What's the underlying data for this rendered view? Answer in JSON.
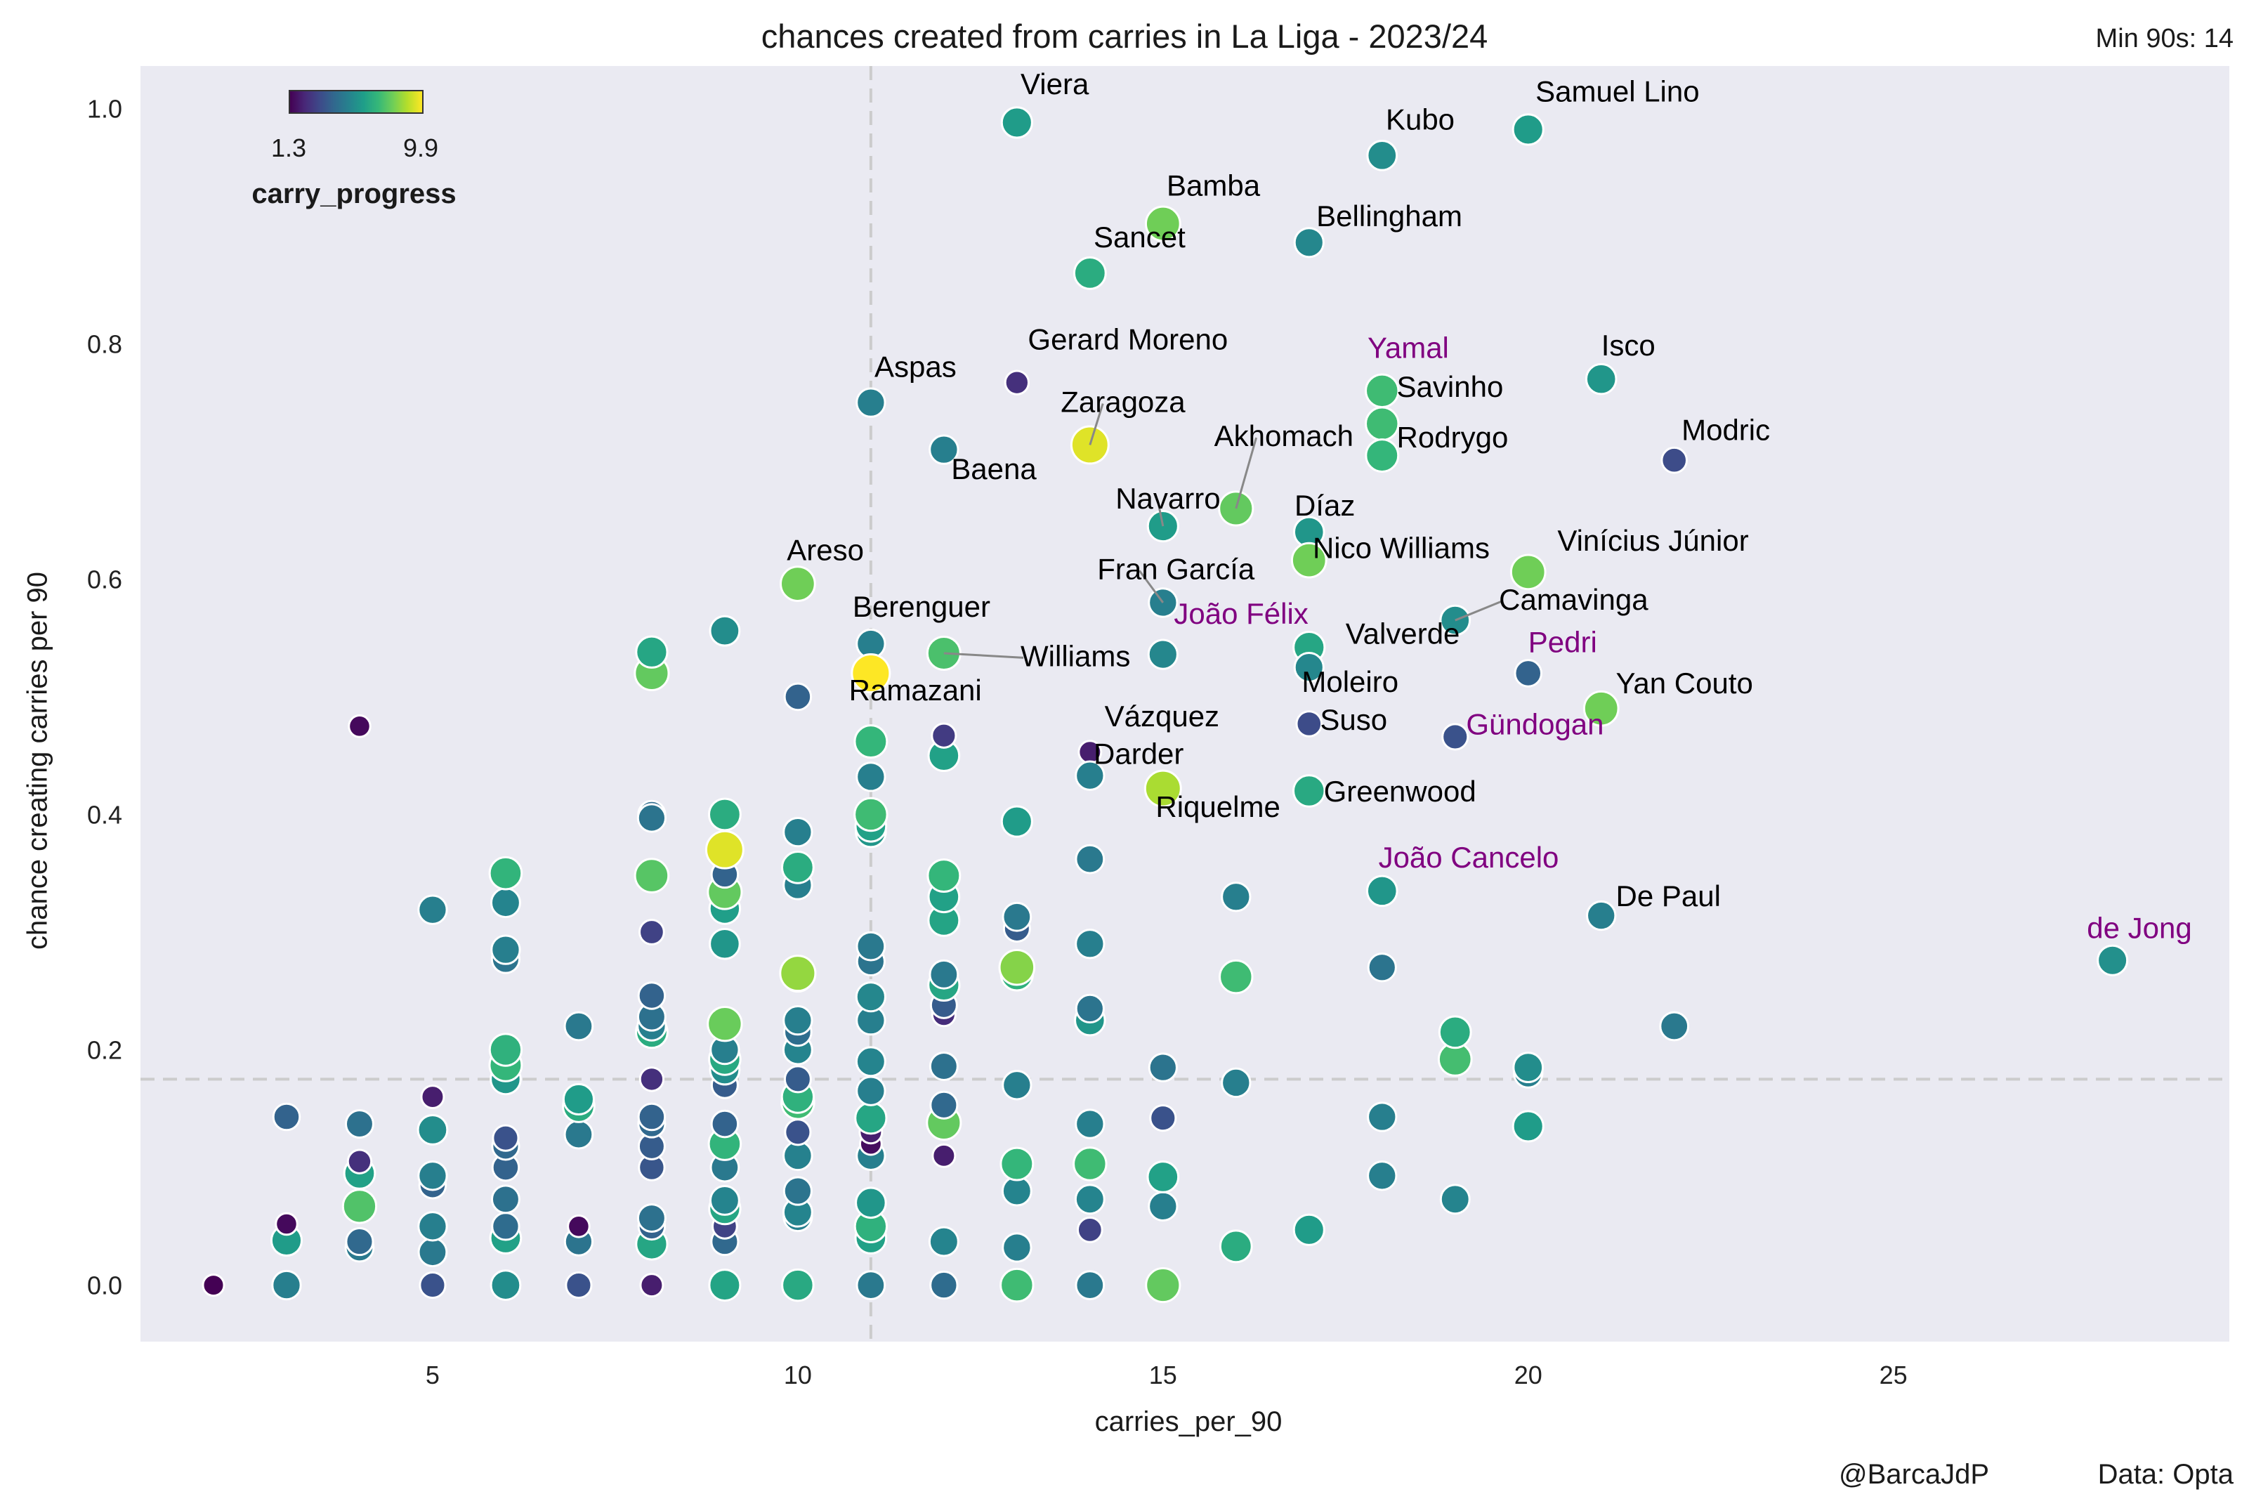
{
  "title": "chances created from carries in La Liga - 2023/24",
  "subtitle": "Min 90s: 14",
  "credit_left": "@BarcaJdP",
  "credit_right": "Data: Opta",
  "colors": {
    "plot_bg": "#eaeaf2",
    "highlight": "#800080",
    "label": "#000000",
    "mean_line": "#cccccc"
  },
  "chart_data": {
    "type": "scatter",
    "xlabel": "carries_per_90",
    "ylabel": "chance creating carries per 90",
    "xlim": [
      1,
      29.6
    ],
    "ylim": [
      -0.048,
      1.036
    ],
    "x_ticks": [
      5,
      10,
      15,
      20,
      25
    ],
    "y_ticks": [
      0.0,
      0.2,
      0.4,
      0.6,
      0.8,
      1.0
    ],
    "y_tick_labels": [
      "0.0",
      "0.2",
      "0.4",
      "0.6",
      "0.8",
      "1.0"
    ],
    "grid": false,
    "mean_lines": {
      "x": 11,
      "y": 0.175
    },
    "colorbar": {
      "title": "carry_progress",
      "min_label": "1.3",
      "max_label": "9.9",
      "min": 1.3,
      "max": 9.9,
      "colormap": "viridis",
      "position": "top-left"
    },
    "labeled_points": [
      {
        "name": "Viera",
        "x": 13,
        "y": 0.988,
        "c": 6.0,
        "lx": 13.05,
        "ly": 1.012,
        "hl": false
      },
      {
        "name": "Samuel Lino",
        "x": 20,
        "y": 0.982,
        "c": 6.0,
        "lx": 20.1,
        "ly": 1.006,
        "hl": false
      },
      {
        "name": "Kubo",
        "x": 18,
        "y": 0.96,
        "c": 5.5,
        "lx": 18.05,
        "ly": 0.982,
        "hl": false
      },
      {
        "name": "Bamba",
        "x": 15,
        "y": 0.902,
        "c": 8.0,
        "lx": 15.05,
        "ly": 0.926,
        "hl": false
      },
      {
        "name": "Bellingham",
        "x": 17,
        "y": 0.886,
        "c": 5.3,
        "lx": 17.1,
        "ly": 0.9,
        "hl": false
      },
      {
        "name": "Sancet",
        "x": 14,
        "y": 0.86,
        "c": 6.6,
        "lx": 14.05,
        "ly": 0.882,
        "hl": false
      },
      {
        "name": "Gerard Moreno",
        "x": 13,
        "y": 0.767,
        "c": 2.5,
        "lx": 13.15,
        "ly": 0.795,
        "hl": false
      },
      {
        "name": "Yamal",
        "x": 18,
        "y": 0.76,
        "c": 7.2,
        "lx": 17.8,
        "ly": 0.788,
        "hl": true
      },
      {
        "name": "Isco",
        "x": 21,
        "y": 0.77,
        "c": 5.8,
        "lx": 21.0,
        "ly": 0.79,
        "hl": false
      },
      {
        "name": "Aspas",
        "x": 11,
        "y": 0.75,
        "c": 5.0,
        "lx": 11.05,
        "ly": 0.772,
        "hl": false
      },
      {
        "name": "Savinho",
        "x": 18,
        "y": 0.732,
        "c": 7.2,
        "lx": 18.2,
        "ly": 0.755,
        "hl": false
      },
      {
        "name": "Zaragoza",
        "x": 14,
        "y": 0.714,
        "c": 9.5,
        "lx": 13.6,
        "ly": 0.742,
        "hl": false
      },
      {
        "name": "Baena",
        "x": 12,
        "y": 0.71,
        "c": 5.0,
        "lx": 12.1,
        "ly": 0.685,
        "hl": false
      },
      {
        "name": "Modric",
        "x": 22,
        "y": 0.701,
        "c": 3.3,
        "lx": 22.1,
        "ly": 0.718,
        "hl": false
      },
      {
        "name": "Rodrygo",
        "x": 18,
        "y": 0.705,
        "c": 7.0,
        "lx": 18.2,
        "ly": 0.712,
        "hl": false
      },
      {
        "name": "Akhomach",
        "x": 16,
        "y": 0.66,
        "c": 7.8,
        "lx": 15.7,
        "ly": 0.713,
        "hl": false
      },
      {
        "name": "Navarro",
        "x": 15,
        "y": 0.645,
        "c": 6.0,
        "lx": 14.35,
        "ly": 0.66,
        "hl": false
      },
      {
        "name": "Díaz",
        "x": 17,
        "y": 0.64,
        "c": 5.8,
        "lx": 16.8,
        "ly": 0.654,
        "hl": false
      },
      {
        "name": "Nico Williams",
        "x": 17,
        "y": 0.616,
        "c": 8.0,
        "lx": 17.05,
        "ly": 0.618,
        "hl": false
      },
      {
        "name": "Vinícius Júnior",
        "x": 20,
        "y": 0.606,
        "c": 8.0,
        "lx": 20.4,
        "ly": 0.624,
        "hl": false
      },
      {
        "name": "Areso",
        "x": 10,
        "y": 0.596,
        "c": 8.0,
        "lx": 9.85,
        "ly": 0.616,
        "hl": false
      },
      {
        "name": "Fran García",
        "x": 15,
        "y": 0.58,
        "c": 5.0,
        "lx": 14.1,
        "ly": 0.6,
        "hl": false
      },
      {
        "name": "Camavinga",
        "x": 19,
        "y": 0.565,
        "c": 5.5,
        "lx": 19.6,
        "ly": 0.574,
        "hl": false
      },
      {
        "name": "Berenguer",
        "x": 11,
        "y": 0.545,
        "c": 5.0,
        "lx": 10.75,
        "ly": 0.568,
        "hl": false
      },
      {
        "name": "João Félix",
        "x": 15,
        "y": 0.536,
        "c": 5.3,
        "lx": 15.15,
        "ly": 0.562,
        "hl": true
      },
      {
        "name": "Valverde",
        "x": 17,
        "y": 0.542,
        "c": 6.4,
        "lx": 17.5,
        "ly": 0.545,
        "hl": false
      },
      {
        "name": "Williams",
        "x": 12,
        "y": 0.537,
        "c": 7.4,
        "lx": 13.05,
        "ly": 0.526,
        "hl": false
      },
      {
        "name": "Ramazani",
        "x": 11,
        "y": 0.52,
        "c": 9.9,
        "lx": 10.7,
        "ly": 0.497,
        "hl": false
      },
      {
        "name": "Pedri",
        "x": 20,
        "y": 0.52,
        "c": 4.0,
        "lx": 20.0,
        "ly": 0.538,
        "hl": true
      },
      {
        "name": "Moleiro",
        "x": 17,
        "y": 0.525,
        "c": 5.3,
        "lx": 16.9,
        "ly": 0.504,
        "hl": false
      },
      {
        "name": "Yan Couto",
        "x": 21,
        "y": 0.49,
        "c": 8.0,
        "lx": 21.2,
        "ly": 0.503,
        "hl": false
      },
      {
        "name": "Vázquez",
        "x": 14,
        "y": 0.453,
        "c": 2.0,
        "lx": 14.2,
        "ly": 0.475,
        "hl": false
      },
      {
        "name": "Suso",
        "x": 17,
        "y": 0.477,
        "c": 3.3,
        "lx": 17.15,
        "ly": 0.472,
        "hl": false
      },
      {
        "name": "Gündogan",
        "x": 19,
        "y": 0.466,
        "c": 3.5,
        "lx": 19.15,
        "ly": 0.468,
        "hl": true
      },
      {
        "name": "Darder",
        "x": 14,
        "y": 0.433,
        "c": 5.0,
        "lx": 14.05,
        "ly": 0.443,
        "hl": false
      },
      {
        "name": "Riquelme",
        "x": 15,
        "y": 0.422,
        "c": 8.8,
        "lx": 14.9,
        "ly": 0.398,
        "hl": false
      },
      {
        "name": "Greenwood",
        "x": 17,
        "y": 0.42,
        "c": 6.5,
        "lx": 17.2,
        "ly": 0.411,
        "hl": false
      },
      {
        "name": "João Cancelo",
        "x": 18,
        "y": 0.335,
        "c": 5.8,
        "lx": 17.95,
        "ly": 0.355,
        "hl": true
      },
      {
        "name": "De Paul",
        "x": 21,
        "y": 0.314,
        "c": 5.0,
        "lx": 21.2,
        "ly": 0.322,
        "hl": false
      },
      {
        "name": "de Jong",
        "x": 28,
        "y": 0.276,
        "c": 5.6,
        "lx": 27.65,
        "ly": 0.295,
        "hl": true
      }
    ],
    "points": [
      [
        2,
        0,
        1.3
      ],
      [
        3,
        0,
        5.0
      ],
      [
        3,
        0.038,
        6.0
      ],
      [
        3,
        0.052,
        1.5
      ],
      [
        3,
        0.143,
        4.0
      ],
      [
        4,
        0.032,
        4.8
      ],
      [
        4,
        0.037,
        4.2
      ],
      [
        4,
        0.067,
        7.5
      ],
      [
        4,
        0.095,
        6.2
      ],
      [
        4,
        0.105,
        2.5
      ],
      [
        4,
        0.137,
        4.5
      ],
      [
        4,
        0.475,
        1.5
      ],
      [
        5,
        0,
        3.5
      ],
      [
        5,
        0.028,
        4.8
      ],
      [
        5,
        0.05,
        5.0
      ],
      [
        5,
        0.085,
        4.0
      ],
      [
        5,
        0.093,
        5.0
      ],
      [
        5,
        0.132,
        5.5
      ],
      [
        5,
        0.16,
        2.0
      ],
      [
        5,
        0.319,
        5.0
      ],
      [
        6,
        0,
        5.5
      ],
      [
        6,
        0.04,
        6.2
      ],
      [
        6,
        0.05,
        4.3
      ],
      [
        6,
        0.073,
        4.5
      ],
      [
        6,
        0.1,
        4.0
      ],
      [
        6,
        0.118,
        4.2
      ],
      [
        6,
        0.125,
        3.5
      ],
      [
        6,
        0.175,
        5.8
      ],
      [
        6,
        0.187,
        7.0
      ],
      [
        6,
        0.2,
        6.8
      ],
      [
        6,
        0.277,
        4.6
      ],
      [
        6,
        0.285,
        5.0
      ],
      [
        6,
        0.325,
        5.2
      ],
      [
        6,
        0.35,
        6.9
      ],
      [
        7,
        0,
        3.5
      ],
      [
        7,
        0.037,
        4.6
      ],
      [
        7,
        0.05,
        1.5
      ],
      [
        7,
        0.128,
        4.8
      ],
      [
        7,
        0.152,
        6.6
      ],
      [
        7,
        0.158,
        6.0
      ],
      [
        7,
        0.22,
        4.8
      ],
      [
        8,
        0,
        2.0
      ],
      [
        8,
        0.035,
        6.4
      ],
      [
        8,
        0.05,
        4.0
      ],
      [
        8,
        0.057,
        4.5
      ],
      [
        8,
        0.1,
        3.6
      ],
      [
        8,
        0.118,
        3.8
      ],
      [
        8,
        0.137,
        4.2
      ],
      [
        8,
        0.143,
        4.0
      ],
      [
        8,
        0.175,
        2.5
      ],
      [
        8,
        0.215,
        6.6
      ],
      [
        8,
        0.22,
        5.0
      ],
      [
        8,
        0.228,
        4.5
      ],
      [
        8,
        0.246,
        4.0
      ],
      [
        8,
        0.3,
        3.0
      ],
      [
        8,
        0.348,
        7.6
      ],
      [
        8,
        0.4,
        4.3
      ],
      [
        8,
        0.397,
        4.6
      ],
      [
        8,
        0.52,
        7.8
      ],
      [
        8,
        0.538,
        6.4
      ],
      [
        9,
        0,
        6.3
      ],
      [
        9,
        0.037,
        4.2
      ],
      [
        9,
        0.05,
        3.0
      ],
      [
        9,
        0.065,
        6.4
      ],
      [
        9,
        0.072,
        5.2
      ],
      [
        9,
        0.1,
        4.8
      ],
      [
        9,
        0.12,
        6.9
      ],
      [
        9,
        0.137,
        4.0
      ],
      [
        9,
        0.17,
        3.8
      ],
      [
        9,
        0.183,
        5.5
      ],
      [
        9,
        0.192,
        6.5
      ],
      [
        9,
        0.2,
        5.0
      ],
      [
        9,
        0.222,
        7.9
      ],
      [
        9,
        0.29,
        5.8
      ],
      [
        9,
        0.32,
        6.1
      ],
      [
        9,
        0.334,
        7.8
      ],
      [
        9,
        0.349,
        4.0
      ],
      [
        9,
        0.37,
        9.5
      ],
      [
        9,
        0.4,
        6.6
      ],
      [
        9,
        0.556,
        5.5
      ],
      [
        10,
        0,
        6.5
      ],
      [
        10,
        0.058,
        5.0
      ],
      [
        10,
        0.062,
        5.2
      ],
      [
        10,
        0.08,
        4.6
      ],
      [
        10,
        0.11,
        5.1
      ],
      [
        10,
        0.13,
        3.5
      ],
      [
        10,
        0.155,
        7.2
      ],
      [
        10,
        0.16,
        6.8
      ],
      [
        10,
        0.175,
        3.8
      ],
      [
        10,
        0.2,
        5.2
      ],
      [
        10,
        0.215,
        4.4
      ],
      [
        10,
        0.225,
        5.0
      ],
      [
        10,
        0.262,
        5.6
      ],
      [
        10,
        0.265,
        8.5
      ],
      [
        10,
        0.34,
        5.0
      ],
      [
        10,
        0.355,
        6.6
      ],
      [
        10,
        0.385,
        5.0
      ],
      [
        10,
        0.5,
        4.0
      ],
      [
        11,
        0,
        4.8
      ],
      [
        11,
        0.04,
        6.2
      ],
      [
        11,
        0.05,
        6.8
      ],
      [
        11,
        0.07,
        5.8
      ],
      [
        11,
        0.11,
        5.0
      ],
      [
        11,
        0.12,
        1.6
      ],
      [
        11,
        0.13,
        2.0
      ],
      [
        11,
        0.142,
        6.4
      ],
      [
        11,
        0.165,
        5.0
      ],
      [
        11,
        0.19,
        5.2
      ],
      [
        11,
        0.225,
        5.0
      ],
      [
        11,
        0.245,
        5.3
      ],
      [
        11,
        0.275,
        4.6
      ],
      [
        11,
        0.288,
        4.8
      ],
      [
        11,
        0.385,
        5.8
      ],
      [
        11,
        0.39,
        6.2
      ],
      [
        11,
        0.4,
        7.2
      ],
      [
        11,
        0.432,
        5.0
      ],
      [
        11,
        0.462,
        7.0
      ],
      [
        12,
        0,
        4.3
      ],
      [
        12,
        0.037,
        5.2
      ],
      [
        12,
        0.11,
        2.0
      ],
      [
        12,
        0.138,
        7.8
      ],
      [
        12,
        0.153,
        4.2
      ],
      [
        12,
        0.186,
        4.5
      ],
      [
        12,
        0.23,
        2.4
      ],
      [
        12,
        0.238,
        3.8
      ],
      [
        12,
        0.255,
        6.4
      ],
      [
        12,
        0.264,
        4.8
      ],
      [
        12,
        0.31,
        6.3
      ],
      [
        12,
        0.33,
        6.2
      ],
      [
        12,
        0.348,
        7.0
      ],
      [
        12,
        0.45,
        6.2
      ],
      [
        12,
        0.467,
        2.8
      ],
      [
        13,
        0,
        7.2
      ],
      [
        13,
        0.032,
        5.0
      ],
      [
        13,
        0.08,
        5.2
      ],
      [
        13,
        0.103,
        7.0
      ],
      [
        13,
        0.17,
        5.0
      ],
      [
        13,
        0.264,
        6.8
      ],
      [
        13,
        0.27,
        8.3
      ],
      [
        13,
        0.303,
        3.8
      ],
      [
        13,
        0.313,
        4.8
      ],
      [
        13,
        0.394,
        6.0
      ],
      [
        14,
        0,
        4.8
      ],
      [
        14,
        0.047,
        3.0
      ],
      [
        14,
        0.073,
        5.2
      ],
      [
        14,
        0.103,
        7.2
      ],
      [
        14,
        0.137,
        5.0
      ],
      [
        14,
        0.225,
        5.8
      ],
      [
        14,
        0.235,
        4.6
      ],
      [
        14,
        0.29,
        5.0
      ],
      [
        14,
        0.362,
        4.8
      ],
      [
        15,
        0,
        7.8
      ],
      [
        15,
        0.067,
        5.0
      ],
      [
        15,
        0.092,
        6.2
      ],
      [
        15,
        0.142,
        3.5
      ],
      [
        15,
        0.185,
        4.6
      ],
      [
        16,
        0.033,
        6.6
      ],
      [
        16,
        0.172,
        5.0
      ],
      [
        16,
        0.262,
        7.2
      ],
      [
        16,
        0.33,
        5.0
      ],
      [
        17,
        0.047,
        6.0
      ],
      [
        18,
        0.093,
        5.0
      ],
      [
        18,
        0.143,
        5.0
      ],
      [
        18,
        0.27,
        4.6
      ],
      [
        19,
        0.073,
        5.2
      ],
      [
        19,
        0.192,
        7.3
      ],
      [
        19,
        0.215,
        6.6
      ],
      [
        20,
        0.135,
        6.0
      ],
      [
        20,
        0.18,
        5.0
      ],
      [
        20,
        0.185,
        5.5
      ],
      [
        22,
        0.22,
        4.8
      ]
    ]
  }
}
